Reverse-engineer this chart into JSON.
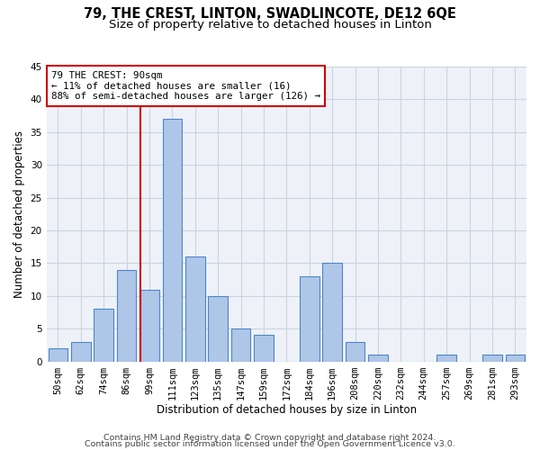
{
  "title": "79, THE CREST, LINTON, SWADLINCOTE, DE12 6QE",
  "subtitle": "Size of property relative to detached houses in Linton",
  "xlabel": "Distribution of detached houses by size in Linton",
  "ylabel": "Number of detached properties",
  "categories": [
    "50sqm",
    "62sqm",
    "74sqm",
    "86sqm",
    "99sqm",
    "111sqm",
    "123sqm",
    "135sqm",
    "147sqm",
    "159sqm",
    "172sqm",
    "184sqm",
    "196sqm",
    "208sqm",
    "220sqm",
    "232sqm",
    "244sqm",
    "257sqm",
    "269sqm",
    "281sqm",
    "293sqm"
  ],
  "values": [
    2,
    3,
    8,
    14,
    11,
    37,
    16,
    10,
    5,
    4,
    0,
    13,
    15,
    3,
    1,
    0,
    0,
    1,
    0,
    1,
    1
  ],
  "bar_color": "#aec6e8",
  "bar_edge_color": "#4f86c6",
  "vline_x_index": 3.62,
  "vline_color": "#cc0000",
  "annotation_line1": "79 THE CREST: 90sqm",
  "annotation_line2": "← 11% of detached houses are smaller (16)",
  "annotation_line3": "88% of semi-detached houses are larger (126) →",
  "annotation_box_color": "white",
  "annotation_box_edge_color": "#cc0000",
  "ylim": [
    0,
    45
  ],
  "yticks": [
    0,
    5,
    10,
    15,
    20,
    25,
    30,
    35,
    40,
    45
  ],
  "footer_line1": "Contains HM Land Registry data © Crown copyright and database right 2024.",
  "footer_line2": "Contains public sector information licensed under the Open Government Licence v3.0.",
  "bg_color": "#eef2f8",
  "grid_color": "#ccd4e0",
  "title_fontsize": 10.5,
  "subtitle_fontsize": 9.5,
  "axis_label_fontsize": 8.5,
  "tick_fontsize": 7.5,
  "annotation_fontsize": 7.8,
  "footer_fontsize": 6.8
}
